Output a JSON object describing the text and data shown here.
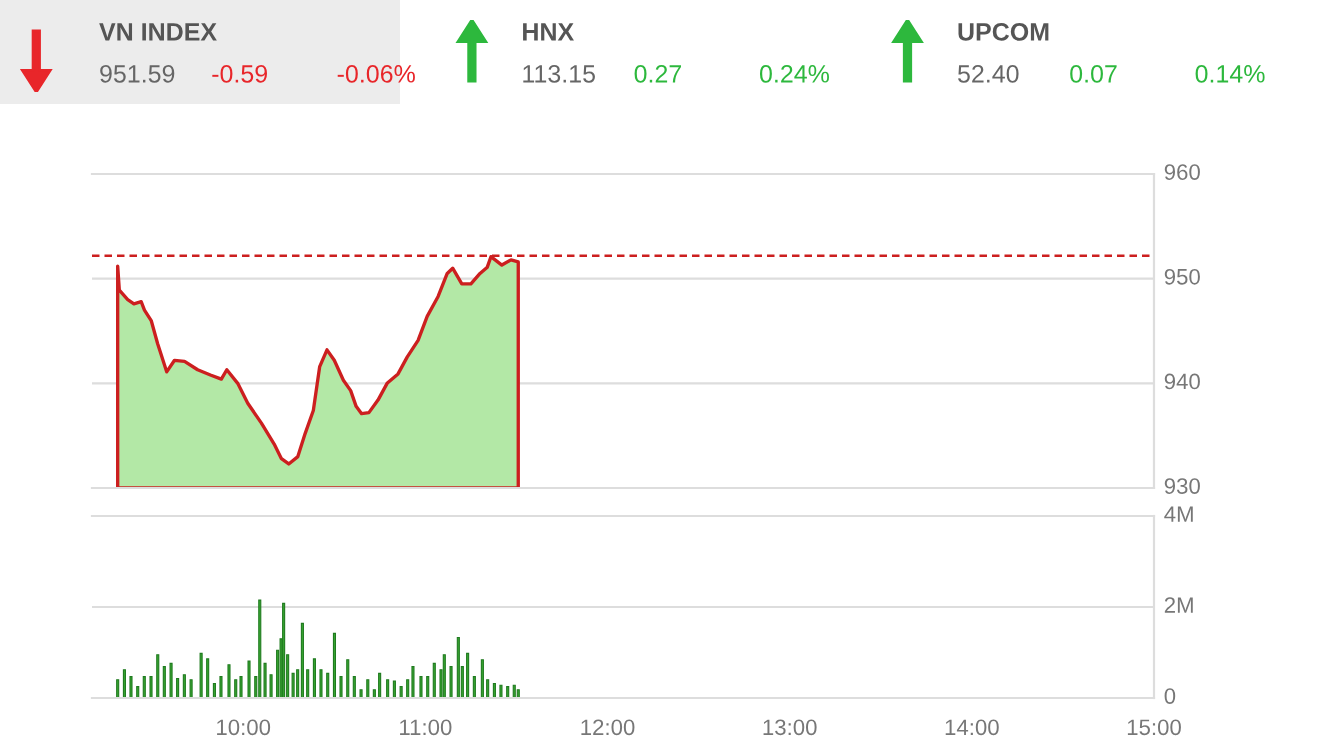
{
  "chart_data": [
    {
      "type": "other",
      "annotations": [
        "VN INDEX",
        "951.59",
        "-0.59",
        "-0.06%",
        "HNX",
        "113.15",
        "0.27",
        "0.24%",
        "UPCOM",
        "52.40",
        "0.07",
        "0.14%"
      ],
      "colors": [
        "#e8262a",
        "#2db83d",
        "#2db83d"
      ]
    },
    {
      "type": "area",
      "x": [
        9.311,
        9.32,
        9.366,
        9.4,
        9.44,
        9.458,
        9.495,
        9.53,
        9.58,
        9.623,
        9.678,
        9.75,
        9.82,
        9.88,
        9.91,
        9.97,
        10.025,
        10.1,
        10.17,
        10.21,
        10.25,
        10.3,
        10.34,
        10.385,
        10.42,
        10.46,
        10.5,
        10.55,
        10.59,
        10.62,
        10.65,
        10.69,
        10.74,
        10.79,
        10.85,
        10.9,
        10.96,
        11.01,
        11.07,
        11.12,
        11.15,
        11.2,
        11.25,
        11.3,
        11.34,
        11.36,
        11.42,
        11.47,
        11.51
      ],
      "series": [
        {
          "color": "#b3e8a6",
          "values": [
            951.2,
            948.9,
            948.0,
            947.6,
            947.8,
            947.0,
            946.0,
            943.8,
            941.1,
            942.2,
            942.1,
            941.3,
            940.8,
            940.4,
            941.3,
            940.0,
            938.1,
            936.2,
            934.2,
            932.8,
            932.3,
            933.0,
            935.2,
            937.4,
            941.6,
            943.2,
            942.2,
            940.3,
            939.3,
            937.8,
            937.1,
            937.2,
            938.4,
            940.0,
            940.9,
            942.5,
            944.1,
            946.4,
            948.3,
            950.5,
            951.0,
            949.5,
            949.5,
            950.5,
            951.1,
            952.1,
            951.3,
            951.8,
            951.6
          ]
        }
      ],
      "xlim": [
        9.17,
        15
      ],
      "ylim": [
        930,
        960
      ],
      "yticks": [
        930,
        940,
        950,
        960
      ],
      "grid": "y",
      "tick_labels": "y",
      "ref_lines": [
        {
          "axis": "y",
          "value": 952.18,
          "color": "#cc1f1f",
          "line_style": "dashed"
        }
      ]
    },
    {
      "type": "bar",
      "x": [
        9.311,
        9.348,
        9.384,
        9.421,
        9.457,
        9.494,
        9.531,
        9.567,
        9.604,
        9.64,
        9.677,
        9.714,
        9.769,
        9.805,
        9.842,
        9.878,
        9.922,
        9.959,
        9.988,
        10.032,
        10.069,
        10.091,
        10.12,
        10.153,
        10.189,
        10.208,
        10.222,
        10.244,
        10.274,
        10.299,
        10.325,
        10.354,
        10.391,
        10.427,
        10.464,
        10.501,
        10.537,
        10.574,
        10.61,
        10.647,
        10.684,
        10.72,
        10.749,
        10.793,
        10.83,
        10.867,
        10.903,
        10.932,
        10.976,
        11.013,
        11.049,
        11.086,
        11.104,
        11.141,
        11.181,
        11.203,
        11.232,
        11.269,
        11.313,
        11.342,
        11.379,
        11.415,
        11.452,
        11.488,
        11.51
      ],
      "series": [
        {
          "color": "#3aa832",
          "values": [
            0.4,
            0.62,
            0.47,
            0.25,
            0.47,
            0.47,
            0.95,
            0.69,
            0.76,
            0.43,
            0.51,
            0.4,
            0.98,
            0.86,
            0.32,
            0.47,
            0.73,
            0.4,
            0.47,
            0.81,
            0.47,
            2.15,
            0.76,
            0.51,
            1.05,
            1.3,
            2.08,
            0.95,
            0.54,
            0.62,
            1.64,
            0.62,
            0.86,
            0.62,
            0.54,
            1.42,
            0.47,
            0.84,
            0.47,
            0.18,
            0.4,
            0.18,
            0.54,
            0.4,
            0.37,
            0.25,
            0.4,
            0.69,
            0.47,
            0.47,
            0.76,
            0.62,
            0.95,
            0.69,
            1.33,
            0.69,
            0.98,
            0.47,
            0.84,
            0.4,
            0.32,
            0.28,
            0.25,
            0.28,
            0.18
          ]
        }
      ],
      "xlim": [
        9.17,
        15
      ],
      "xticks": [
        {
          "value": 10,
          "label": "10:00"
        },
        {
          "value": 11,
          "label": "11:00"
        },
        {
          "value": 12,
          "label": "12:00"
        },
        {
          "value": 13,
          "label": "13:00"
        },
        {
          "value": 14,
          "label": "14:00"
        },
        {
          "value": 15,
          "label": "15:00"
        }
      ],
      "ylim": [
        0,
        4
      ],
      "yticks": [
        {
          "value": 0,
          "label": "0"
        },
        {
          "value": 2,
          "label": "2M"
        },
        {
          "value": 4,
          "label": "4M"
        }
      ],
      "grid": "y"
    }
  ]
}
